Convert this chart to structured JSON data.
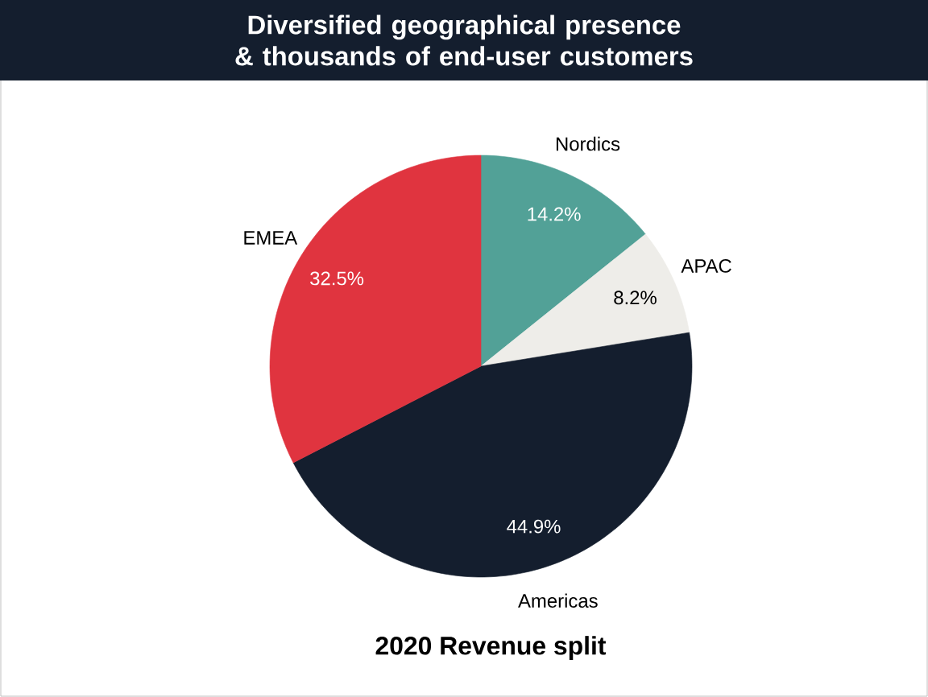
{
  "chart_data": {
    "type": "pie",
    "title": "Diversified geographical presence & thousands of end-user customers",
    "subtitle": "2020 Revenue split",
    "categories": [
      "Nordics",
      "APAC",
      "Americas",
      "EMEA"
    ],
    "values": [
      14.2,
      8.2,
      44.9,
      32.5
    ],
    "value_labels": [
      "14.2%",
      "8.2%",
      "44.9%",
      "32.5%"
    ],
    "colors": [
      "#52a197",
      "#eeede9",
      "#141e2e",
      "#e0343f"
    ]
  }
}
